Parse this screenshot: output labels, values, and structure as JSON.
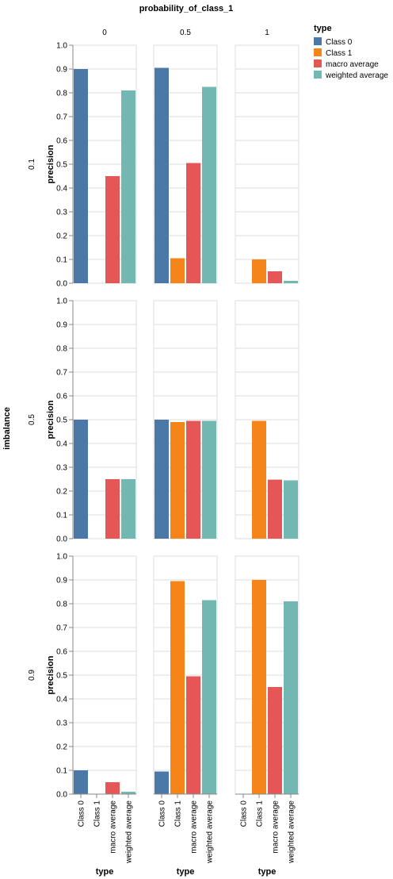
{
  "chart_data": {
    "type": "bar",
    "title": "probability_of_class_1",
    "row_title": "imbalance",
    "columns": [
      "0",
      "0.5",
      "1"
    ],
    "rows": [
      "0.1",
      "0.5",
      "0.9"
    ],
    "categories": [
      "Class 0",
      "Class 1",
      "macro average",
      "weighted average"
    ],
    "xlabel": "type",
    "ylabel": "precision",
    "ylim": [
      0,
      1
    ],
    "yticks": [
      "0.0",
      "0.1",
      "0.2",
      "0.3",
      "0.4",
      "0.5",
      "0.6",
      "0.7",
      "0.8",
      "0.9",
      "1.0"
    ],
    "grid": true,
    "legend": {
      "title": "type",
      "placement": "top-right",
      "entries": [
        "Class 0",
        "Class 1",
        "macro average",
        "weighted average"
      ]
    },
    "colors": [
      "#4c78a8",
      "#f58518",
      "#e45756",
      "#72b7b2"
    ],
    "facets": [
      {
        "row": "0.1",
        "col": "0",
        "values": [
          0.9,
          0,
          0.45,
          0.81
        ]
      },
      {
        "row": "0.1",
        "col": "0.5",
        "values": [
          0.905,
          0.105,
          0.505,
          0.825
        ]
      },
      {
        "row": "0.1",
        "col": "1",
        "values": [
          0,
          0.1,
          0.05,
          0.01
        ]
      },
      {
        "row": "0.5",
        "col": "0",
        "values": [
          0.5,
          0,
          0.25,
          0.25
        ]
      },
      {
        "row": "0.5",
        "col": "0.5",
        "values": [
          0.5,
          0.49,
          0.495,
          0.495
        ]
      },
      {
        "row": "0.5",
        "col": "1",
        "values": [
          0,
          0.495,
          0.248,
          0.245
        ]
      },
      {
        "row": "0.9",
        "col": "0",
        "values": [
          0.1,
          0,
          0.05,
          0.01
        ]
      },
      {
        "row": "0.9",
        "col": "0.5",
        "values": [
          0.095,
          0.895,
          0.495,
          0.815
        ]
      },
      {
        "row": "0.9",
        "col": "1",
        "values": [
          0.001,
          0.9,
          0.45,
          0.81
        ]
      }
    ]
  }
}
